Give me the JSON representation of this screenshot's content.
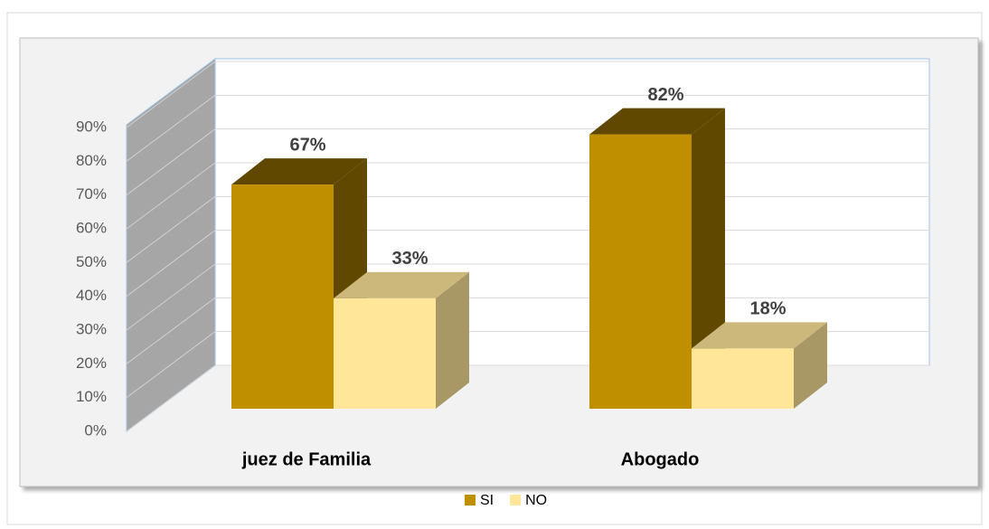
{
  "chart_data": {
    "type": "bar3d",
    "categories": [
      "juez de Familia",
      "Abogado"
    ],
    "series": [
      {
        "name": "SI",
        "color": "#bf8f00",
        "values": [
          67,
          82
        ],
        "value_labels": [
          "67%",
          "82%"
        ]
      },
      {
        "name": "NO",
        "color": "#ffe699",
        "values": [
          33,
          18
        ],
        "value_labels": [
          "33%",
          "18%"
        ]
      }
    ],
    "ylim": [
      0,
      90
    ],
    "yticks": [
      {
        "value": 0,
        "label": "0%"
      },
      {
        "value": 10,
        "label": "10%"
      },
      {
        "value": 20,
        "label": "20%"
      },
      {
        "value": 30,
        "label": "30%"
      },
      {
        "value": 40,
        "label": "40%"
      },
      {
        "value": 50,
        "label": "50%"
      },
      {
        "value": 60,
        "label": "60%"
      },
      {
        "value": 70,
        "label": "70%"
      },
      {
        "value": 80,
        "label": "80%"
      },
      {
        "value": 90,
        "label": "90%"
      }
    ],
    "grid": true
  }
}
